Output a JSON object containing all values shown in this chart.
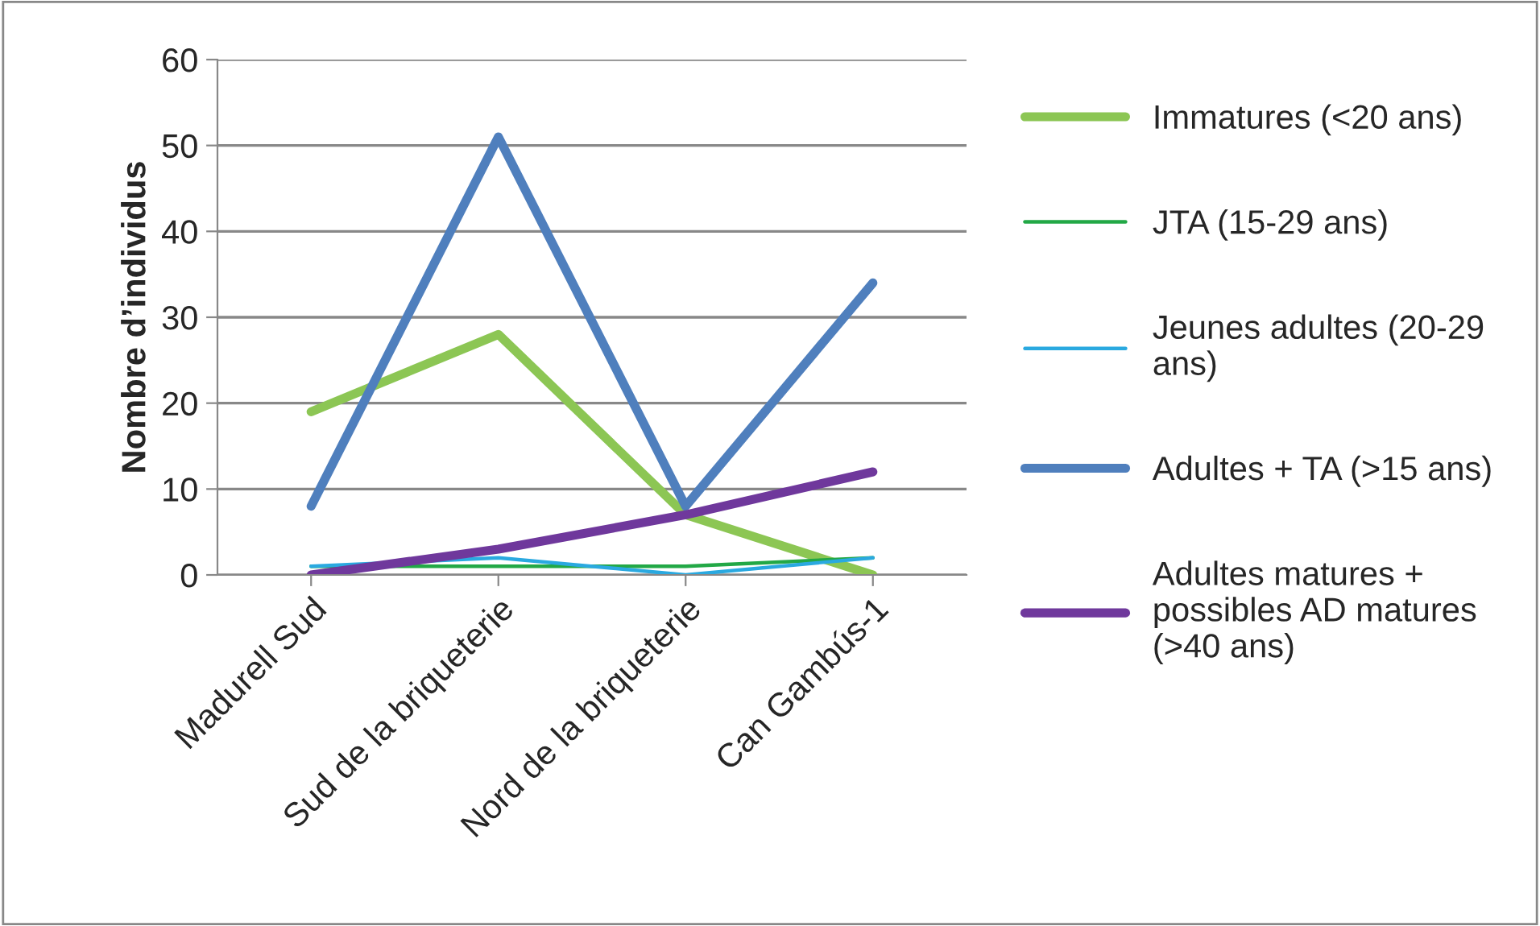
{
  "chart_data": {
    "type": "line",
    "ylabel": "Nombre d’individus",
    "categories": [
      "Madurell Sud",
      "Sud de la briqueterie",
      "Nord de la briqueterie",
      "Can Gambús-1"
    ],
    "series": [
      {
        "name": "Immatures (<20 ans)",
        "color": "#8cc654",
        "values": [
          19,
          28,
          7,
          0
        ]
      },
      {
        "name": "JTA (15-29 ans)",
        "color": "#22a846",
        "values": [
          1,
          1,
          1,
          2
        ]
      },
      {
        "name": "Jeunes adultes (20-29\nans)",
        "color": "#2aa9e0",
        "values": [
          1,
          2,
          0,
          2
        ]
      },
      {
        "name": "Adultes + TA (>15 ans)",
        "color": "#4f7fbd",
        "values": [
          8,
          51,
          8,
          34
        ]
      },
      {
        "name": "Adultes matures +\npossibles AD matures\n(>40 ans)",
        "color": "#6f389c",
        "values": [
          0,
          3,
          7,
          12
        ]
      }
    ],
    "ylim": [
      0,
      60
    ],
    "yticks": [
      0,
      10,
      20,
      30,
      40,
      50,
      60
    ],
    "grid": "y",
    "legend": "right",
    "marker": "none",
    "line_style": "solid"
  }
}
